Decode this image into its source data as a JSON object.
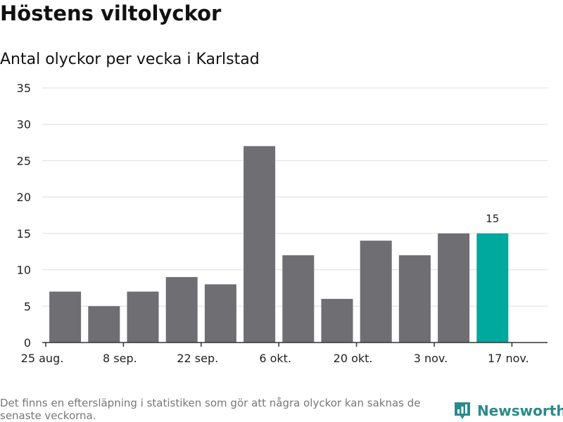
{
  "header": {
    "title": "Höstens viltolyckor",
    "subtitle": "Antal olyckor per vecka i Karlstad"
  },
  "footer": {
    "note": "Det finns en eftersläpning i statistiken som gör att några olyckor kan saknas de senaste veckorna.",
    "brand": "Newsworthy",
    "brand_icon": "bar-chart-pin-icon"
  },
  "colors": {
    "bar": "#6e6e73",
    "highlight": "#00a99d",
    "grid": "#dddddd",
    "axis": "#333333",
    "brand": "#2b8a8a"
  },
  "chart_data": {
    "type": "bar",
    "title": "Höstens viltolyckor",
    "subtitle": "Antal olyckor per vecka i Karlstad",
    "xlabel": "",
    "ylabel": "",
    "x_tick_labels": [
      "25 aug.",
      "8 sep.",
      "22 sep.",
      "6 okt.",
      "20 okt.",
      "3 nov.",
      "17 nov."
    ],
    "values": [
      7,
      5,
      7,
      9,
      8,
      27,
      12,
      6,
      14,
      12,
      15,
      15
    ],
    "highlight_index": 11,
    "data_labels": [
      {
        "index": 11,
        "text": "15"
      }
    ],
    "y_ticks": [
      0,
      5,
      10,
      15,
      20,
      25,
      30,
      35
    ],
    "ylim": [
      0,
      35
    ],
    "grid": true,
    "legend": "none"
  }
}
